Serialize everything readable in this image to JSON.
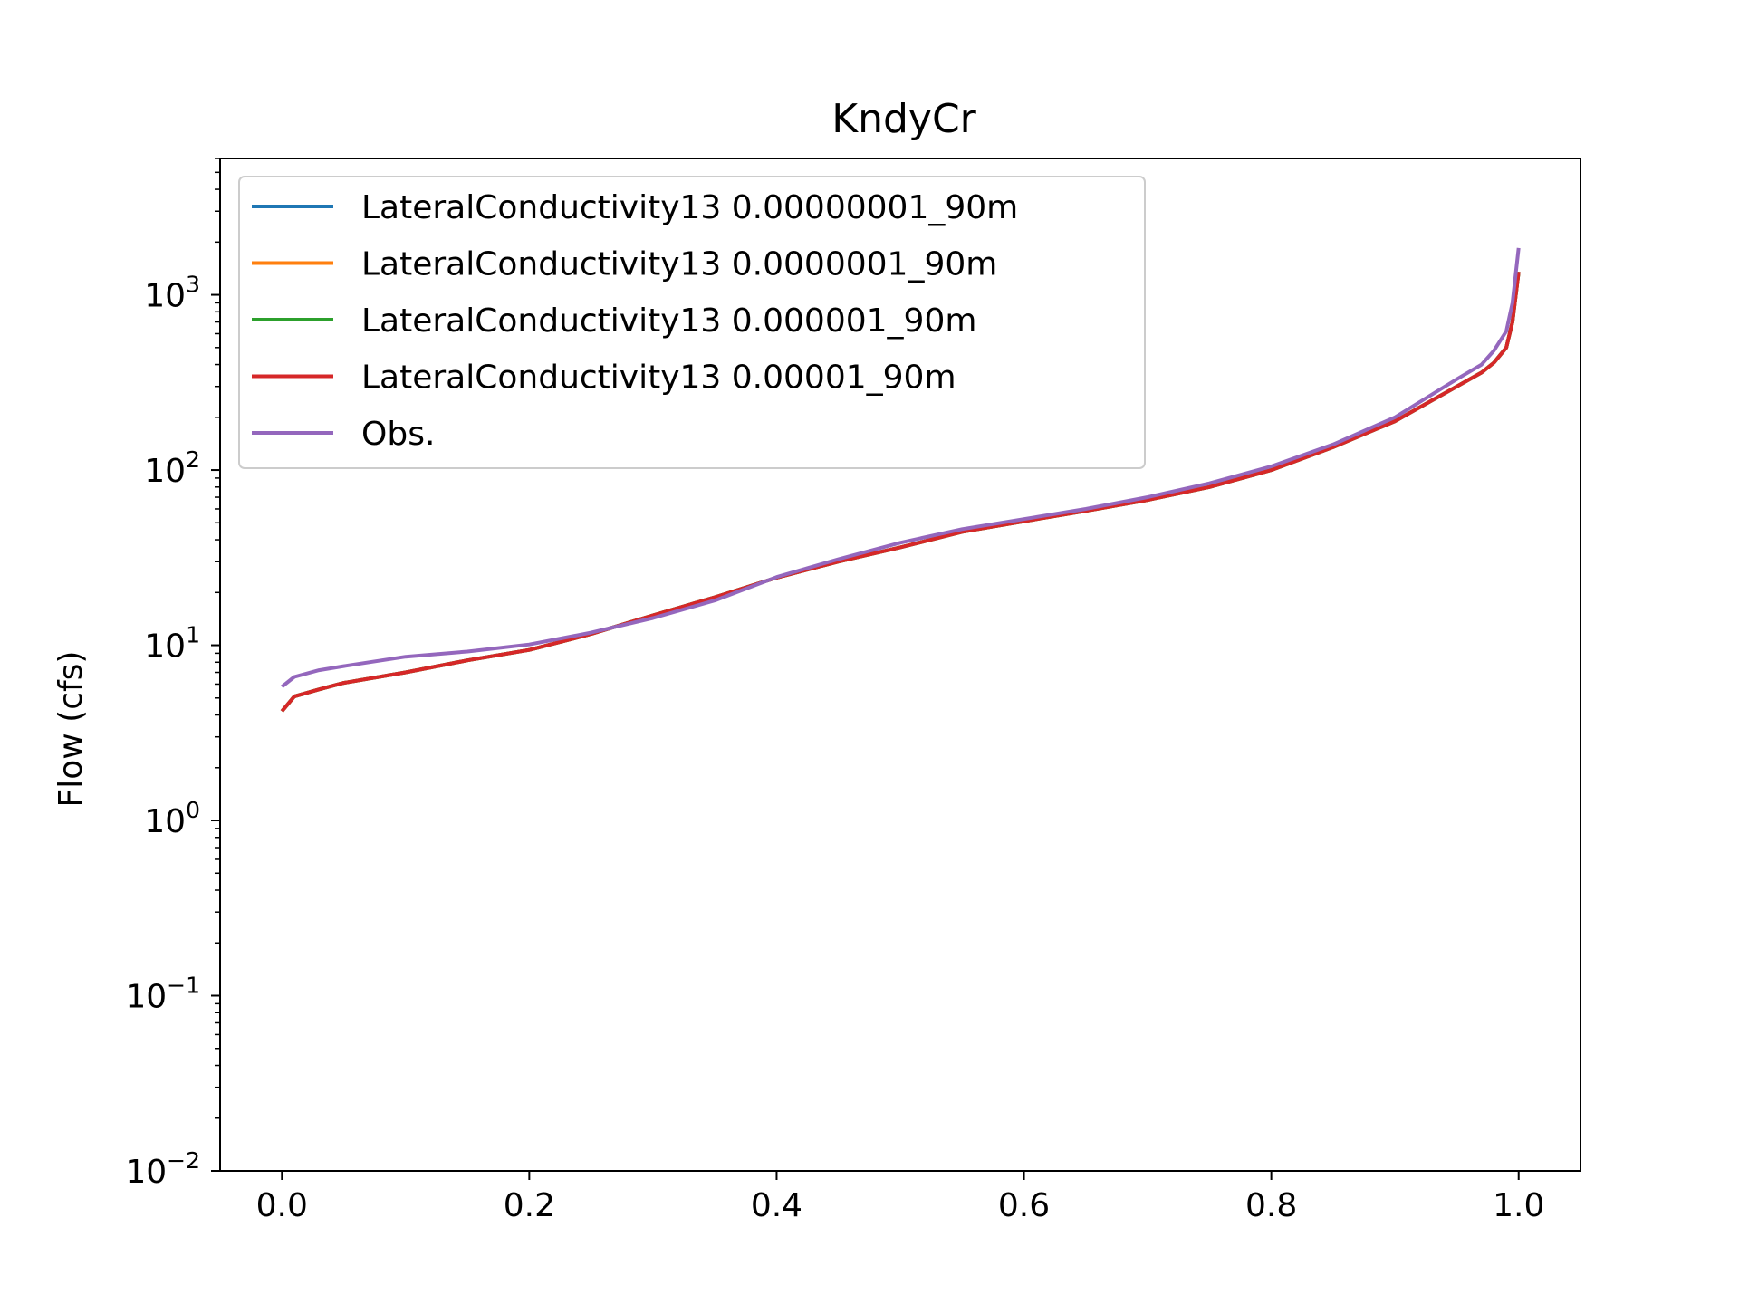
{
  "chart_data": {
    "type": "line",
    "title": "KndyCr",
    "xlabel": "",
    "ylabel": "Flow (cfs)",
    "xlim": [
      -0.05,
      1.05
    ],
    "ylim": [
      0.01,
      6000
    ],
    "yscale": "log",
    "grid": false,
    "legend_position": "upper-left",
    "x_ticks": [
      {
        "value": 0.0,
        "label": "0.0"
      },
      {
        "value": 0.2,
        "label": "0.2"
      },
      {
        "value": 0.4,
        "label": "0.4"
      },
      {
        "value": 0.6,
        "label": "0.6"
      },
      {
        "value": 0.8,
        "label": "0.8"
      },
      {
        "value": 1.0,
        "label": "1.0"
      }
    ],
    "y_ticks": [
      {
        "value": 0.01,
        "base": "10",
        "exp": "−2"
      },
      {
        "value": 0.1,
        "base": "10",
        "exp": "−1"
      },
      {
        "value": 1,
        "base": "10",
        "exp": "0"
      },
      {
        "value": 10,
        "base": "10",
        "exp": "1"
      },
      {
        "value": 100,
        "base": "10",
        "exp": "2"
      },
      {
        "value": 1000,
        "base": "10",
        "exp": "3"
      }
    ],
    "x": [
      0.0,
      0.01,
      0.03,
      0.05,
      0.1,
      0.15,
      0.2,
      0.25,
      0.3,
      0.35,
      0.4,
      0.45,
      0.5,
      0.55,
      0.6,
      0.65,
      0.7,
      0.75,
      0.8,
      0.85,
      0.9,
      0.93,
      0.95,
      0.97,
      0.98,
      0.99,
      0.995,
      1.0
    ],
    "series": [
      {
        "name": "LateralConductivity13 0.00000001_90m",
        "color": "#1f77b4",
        "values": [
          4.2,
          5.1,
          5.6,
          6.1,
          7.0,
          8.2,
          9.4,
          11.6,
          14.8,
          18.8,
          24.3,
          30.0,
          36.2,
          44.4,
          51.0,
          58.5,
          67.5,
          80.0,
          100.0,
          135.0,
          190.0,
          250.0,
          300.0,
          360.0,
          410.0,
          500.0,
          700.0,
          1350.0
        ]
      },
      {
        "name": "LateralConductivity13 0.0000001_90m",
        "color": "#ff7f0e",
        "values": [
          4.2,
          5.1,
          5.6,
          6.1,
          7.0,
          8.2,
          9.4,
          11.6,
          14.8,
          18.8,
          24.3,
          30.0,
          36.2,
          44.4,
          51.0,
          58.5,
          67.5,
          80.0,
          100.0,
          135.0,
          190.0,
          250.0,
          300.0,
          360.0,
          410.0,
          500.0,
          700.0,
          1350.0
        ]
      },
      {
        "name": "LateralConductivity13 0.000001_90m",
        "color": "#2ca02c",
        "values": [
          4.2,
          5.1,
          5.6,
          6.1,
          7.0,
          8.2,
          9.4,
          11.6,
          14.8,
          18.8,
          24.3,
          30.0,
          36.2,
          44.4,
          51.0,
          58.5,
          67.5,
          80.0,
          100.0,
          135.0,
          190.0,
          250.0,
          300.0,
          360.0,
          410.0,
          500.0,
          700.0,
          1350.0
        ]
      },
      {
        "name": "LateralConductivity13 0.00001_90m",
        "color": "#d62728",
        "values": [
          4.2,
          5.1,
          5.6,
          6.1,
          7.0,
          8.2,
          9.4,
          11.6,
          14.8,
          18.8,
          24.3,
          30.0,
          36.2,
          44.4,
          51.0,
          58.5,
          67.5,
          80.0,
          100.0,
          135.0,
          190.0,
          250.0,
          300.0,
          360.0,
          410.0,
          500.0,
          700.0,
          1350.0
        ]
      },
      {
        "name": "Obs.",
        "color": "#9467bd",
        "values": [
          5.8,
          6.6,
          7.2,
          7.6,
          8.6,
          9.2,
          10.1,
          11.8,
          14.3,
          18.0,
          24.5,
          31.0,
          38.5,
          46.0,
          52.5,
          60.0,
          70.0,
          84.0,
          105.0,
          140.0,
          200.0,
          270.0,
          330.0,
          400.0,
          480.0,
          620.0,
          900.0,
          1850.0
        ]
      }
    ]
  }
}
